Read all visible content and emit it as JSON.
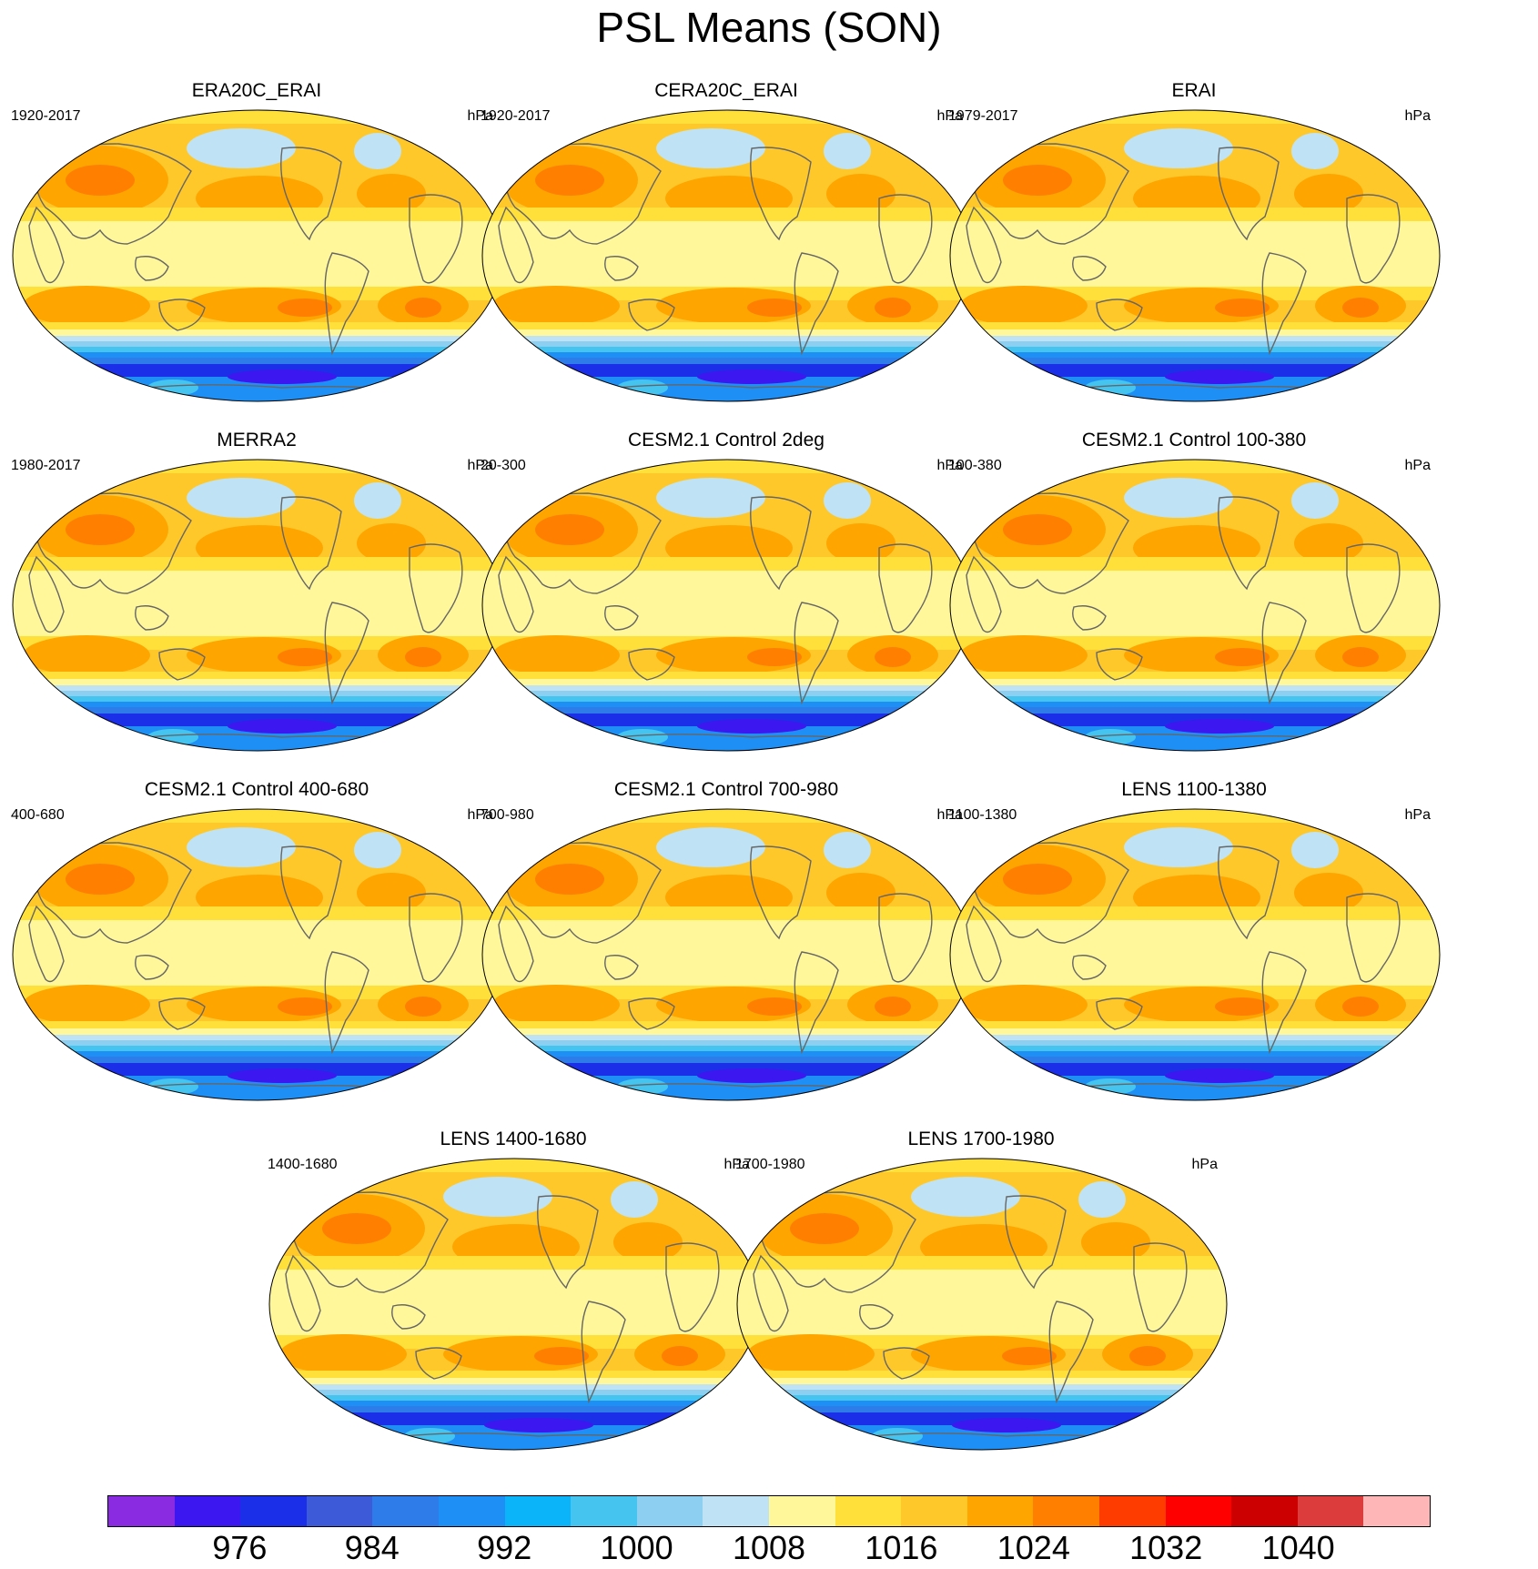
{
  "title": "PSL Means (SON)",
  "panels": [
    {
      "title": "ERA20C_ERAI",
      "left": "1920-2017",
      "right": "hPa"
    },
    {
      "title": "CERA20C_ERAI",
      "left": "1920-2017",
      "right": "hPa"
    },
    {
      "title": "ERAI",
      "left": "1979-2017",
      "right": "hPa"
    },
    {
      "title": "MERRA2",
      "left": "1980-2017",
      "right": "hPa"
    },
    {
      "title": "CESM2.1 Control 2deg",
      "left": "20-300",
      "right": "hPa"
    },
    {
      "title": "CESM2.1 Control 100-380",
      "left": "100-380",
      "right": "hPa"
    },
    {
      "title": "CESM2.1 Control 400-680",
      "left": "400-680",
      "right": "hPa"
    },
    {
      "title": "CESM2.1 Control 700-980",
      "left": "700-980",
      "right": "hPa"
    },
    {
      "title": "LENS 1100-1380",
      "left": "1100-1380",
      "right": "hPa"
    },
    {
      "title": "LENS 1400-1680",
      "left": "1400-1680",
      "right": "hPa"
    },
    {
      "title": "LENS 1700-1980",
      "left": "1700-1980",
      "right": "hPa"
    }
  ],
  "colorbar": {
    "colors": [
      "#8a2be2",
      "#3d17f0",
      "#1b2ee8",
      "#3d5bd9",
      "#2e7bea",
      "#1e90f5",
      "#0bb4f8",
      "#45c4f0",
      "#8ccff0",
      "#bfe3f5",
      "#fff79a",
      "#ffe03a",
      "#ffc82a",
      "#ffa500",
      "#ff7f00",
      "#ff3c00",
      "#ff0000",
      "#cc0000",
      "#dd3c3c",
      "#ffb6b6"
    ],
    "labels": [
      "976",
      "984",
      "992",
      "1000",
      "1008",
      "1016",
      "1024",
      "1032",
      "1040"
    ]
  }
}
